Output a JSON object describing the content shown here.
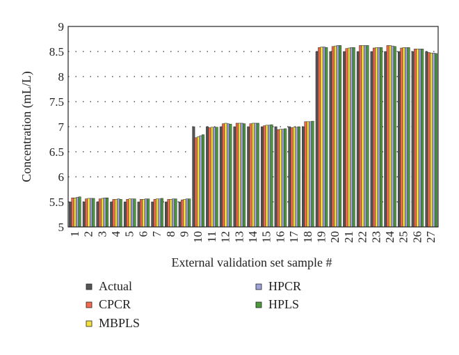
{
  "chart_data": {
    "type": "bar",
    "xlabel": "External validation set sample #",
    "ylabel": "Concentration (mL/L)",
    "ylim": [
      5,
      9
    ],
    "yticks": [
      "5",
      "5.5",
      "6",
      "6.5",
      "7",
      "7.5",
      "8",
      "8.5",
      "9"
    ],
    "grid": "dotted horizontal",
    "legend_position": "bottom",
    "categories": [
      "1",
      "2",
      "3",
      "4",
      "5",
      "6",
      "7",
      "8",
      "9",
      "10",
      "11",
      "12",
      "13",
      "14",
      "15",
      "16",
      "17",
      "18",
      "19",
      "20",
      "21",
      "22",
      "23",
      "24",
      "25",
      "26",
      "27"
    ],
    "series": [
      {
        "name": "Actual",
        "color": "#555555",
        "values": [
          5.5,
          5.5,
          5.5,
          5.5,
          5.5,
          5.5,
          5.5,
          5.5,
          5.5,
          7.0,
          7.0,
          7.0,
          7.0,
          7.0,
          7.0,
          7.0,
          7.0,
          7.0,
          8.5,
          8.5,
          8.5,
          8.5,
          8.5,
          8.5,
          8.5,
          8.5,
          8.5
        ]
      },
      {
        "name": "CPCR",
        "color": "#f26b4f",
        "values": [
          5.58,
          5.56,
          5.56,
          5.55,
          5.55,
          5.55,
          5.55,
          5.55,
          5.54,
          6.78,
          6.98,
          7.06,
          7.07,
          7.06,
          7.02,
          6.94,
          6.98,
          7.1,
          8.58,
          8.6,
          8.56,
          8.62,
          8.57,
          8.62,
          8.57,
          8.55,
          8.48
        ]
      },
      {
        "name": "MBPLS",
        "color": "#f5df3a",
        "values": [
          5.58,
          5.57,
          5.57,
          5.55,
          5.56,
          5.55,
          5.56,
          5.55,
          5.55,
          6.8,
          6.99,
          7.07,
          7.07,
          7.07,
          7.03,
          6.95,
          6.99,
          7.1,
          8.59,
          8.61,
          8.57,
          8.62,
          8.58,
          8.62,
          8.58,
          8.55,
          8.47
        ]
      },
      {
        "name": "HPCR",
        "color": "#9ea3d9",
        "values": [
          5.59,
          5.57,
          5.58,
          5.56,
          5.56,
          5.56,
          5.56,
          5.56,
          5.56,
          6.82,
          6.99,
          7.06,
          7.07,
          7.07,
          7.03,
          6.95,
          6.99,
          7.1,
          8.59,
          8.62,
          8.58,
          8.62,
          8.58,
          8.61,
          8.58,
          8.55,
          8.47
        ]
      },
      {
        "name": "HPLS",
        "color": "#4c9a3c",
        "values": [
          5.6,
          5.57,
          5.58,
          5.55,
          5.56,
          5.56,
          5.57,
          5.56,
          5.56,
          6.84,
          6.99,
          7.05,
          7.06,
          7.07,
          7.04,
          6.96,
          7.0,
          7.11,
          8.58,
          8.62,
          8.58,
          8.62,
          8.58,
          8.6,
          8.58,
          8.55,
          8.46
        ]
      }
    ]
  }
}
